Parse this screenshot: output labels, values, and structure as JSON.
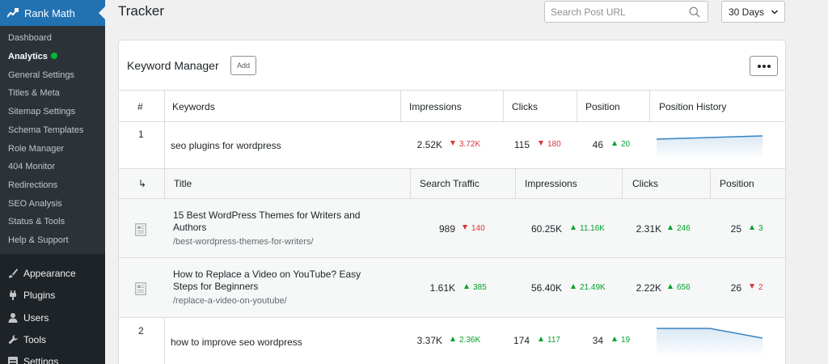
{
  "sidebar": {
    "brand": "Rank Math",
    "submenu": [
      {
        "label": "Dashboard"
      },
      {
        "label": "Analytics",
        "active": true
      },
      {
        "label": "General Settings"
      },
      {
        "label": "Titles & Meta"
      },
      {
        "label": "Sitemap Settings"
      },
      {
        "label": "Schema Templates"
      },
      {
        "label": "Role Manager"
      },
      {
        "label": "404 Monitor"
      },
      {
        "label": "Redirections"
      },
      {
        "label": "SEO Analysis"
      },
      {
        "label": "Status & Tools"
      },
      {
        "label": "Help & Support"
      }
    ],
    "menu": [
      {
        "label": "Appearance",
        "icon": "paintbrush-icon"
      },
      {
        "label": "Plugins",
        "icon": "plugin-icon"
      },
      {
        "label": "Users",
        "icon": "users-icon"
      },
      {
        "label": "Tools",
        "icon": "wrench-icon"
      },
      {
        "label": "Settings",
        "icon": "settings-icon"
      }
    ]
  },
  "header": {
    "title": "Tracker",
    "search_placeholder": "Search Post URL",
    "period": "30 Days"
  },
  "panel": {
    "title": "Keyword Manager",
    "add_label": "Add",
    "columns": [
      "#",
      "Keywords",
      "Impressions",
      "Clicks",
      "Position",
      "Position History"
    ],
    "sub_columns": [
      "Title",
      "Search Traffic",
      "Impressions",
      "Clicks",
      "Position"
    ],
    "sub_arrow": "↳",
    "keywords": [
      {
        "num": "1",
        "keyword": "seo plugins for wordpress",
        "impressions": "2.52K",
        "impressions_change": "3.72K",
        "impressions_dir": "down",
        "clicks": "115",
        "clicks_change": "180",
        "clicks_dir": "down",
        "position": "46",
        "position_change": "20",
        "position_dir": "up"
      },
      {
        "num": "2",
        "keyword": "how to improve seo wordpress",
        "impressions": "3.37K",
        "impressions_change": "2.36K",
        "impressions_dir": "up",
        "clicks": "174",
        "clicks_change": "117",
        "clicks_dir": "up",
        "position": "34",
        "position_change": "19",
        "position_dir": "up"
      }
    ],
    "posts": [
      {
        "title": "15 Best WordPress Themes for Writers and Authors",
        "url": "/best-wordpress-themes-for-writers/",
        "traffic": "989",
        "traffic_change": "140",
        "traffic_dir": "down",
        "impressions": "60.25K",
        "impressions_change": "11.16K",
        "impressions_dir": "up",
        "clicks": "2.31K",
        "clicks_change": "246",
        "clicks_dir": "up",
        "position": "25",
        "position_change": "3",
        "position_dir": "up"
      },
      {
        "title": "How to Replace a Video on YouTube? Easy Steps for Beginners",
        "url": "/replace-a-video-on-youtube/",
        "traffic": "1.61K",
        "traffic_change": "385",
        "traffic_dir": "up",
        "impressions": "56.40K",
        "impressions_change": "21.49K",
        "impressions_dir": "up",
        "clicks": "2.22K",
        "clicks_change": "656",
        "clicks_dir": "up",
        "position": "26",
        "position_change": "2",
        "position_dir": "down"
      }
    ]
  },
  "colors": {
    "accent": "#2271b1",
    "up": "#00a32a",
    "down": "#d63638",
    "sparkline": "#3582c4"
  }
}
